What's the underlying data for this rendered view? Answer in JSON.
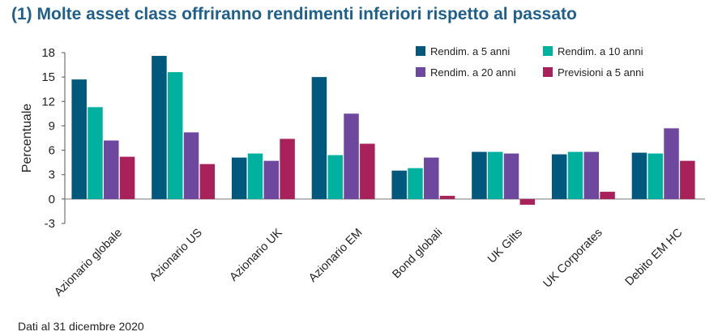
{
  "title": "(1) Molte asset class offriranno rendimenti inferiori rispetto al passato",
  "footnote": "Dati al 31 dicembre 2020",
  "chart_data": {
    "type": "bar",
    "title": "(1) Molte asset class offriranno rendimenti inferiori rispetto al passato",
    "xlabel": "",
    "ylabel": "Percentuale",
    "ylim": [
      -3,
      18
    ],
    "yticks": [
      -3,
      0,
      3,
      6,
      9,
      12,
      15,
      18
    ],
    "grid": false,
    "legend_position": "top-right",
    "categories": [
      "Azionario globale",
      "Azionario US",
      "Azionario UK",
      "Azionario EM",
      "Bond globali",
      "UK Gilts",
      "UK Corporates",
      "Debito EM HC"
    ],
    "series": [
      {
        "name": "Rendim. a 5 anni",
        "color": "#00587c",
        "values": [
          14.7,
          17.6,
          5.1,
          15.0,
          3.5,
          5.8,
          5.5,
          5.7
        ]
      },
      {
        "name": "Rendim. a 10 anni",
        "color": "#00b1a0",
        "values": [
          11.3,
          15.6,
          5.6,
          5.4,
          3.8,
          5.8,
          5.8,
          5.6
        ]
      },
      {
        "name": "Rendim. a 20 anni",
        "color": "#6e479e",
        "values": [
          7.2,
          8.2,
          4.7,
          10.5,
          5.1,
          5.6,
          5.8,
          8.7
        ]
      },
      {
        "name": "Previsioni a 5 anni",
        "color": "#a8215a",
        "values": [
          5.2,
          4.3,
          7.4,
          6.8,
          0.4,
          -0.7,
          0.9,
          4.7
        ]
      }
    ]
  }
}
